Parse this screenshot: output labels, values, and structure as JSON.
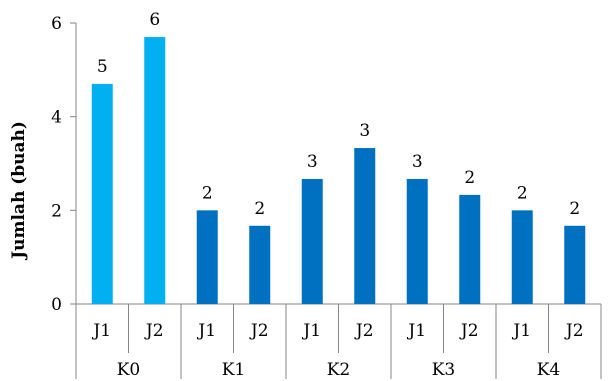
{
  "chart_data": {
    "type": "bar",
    "groups": [
      {
        "label": "K0",
        "bars": [
          {
            "label": "J1",
            "value": 4.7,
            "data_label": "5"
          },
          {
            "label": "J2",
            "value": 5.7,
            "data_label": "6"
          }
        ]
      },
      {
        "label": "K1",
        "bars": [
          {
            "label": "J1",
            "value": 2.0,
            "data_label": "2"
          },
          {
            "label": "J2",
            "value": 1.67,
            "data_label": "2"
          }
        ]
      },
      {
        "label": "K2",
        "bars": [
          {
            "label": "J1",
            "value": 2.67,
            "data_label": "3"
          },
          {
            "label": "J2",
            "value": 3.33,
            "data_label": "3"
          }
        ]
      },
      {
        "label": "K3",
        "bars": [
          {
            "label": "J1",
            "value": 2.67,
            "data_label": "3"
          },
          {
            "label": "J2",
            "value": 2.33,
            "data_label": "2"
          }
        ]
      },
      {
        "label": "K4",
        "bars": [
          {
            "label": "J1",
            "value": 2.0,
            "data_label": "2"
          },
          {
            "label": "J2",
            "value": 1.67,
            "data_label": "2"
          }
        ]
      }
    ],
    "title": "",
    "xlabel": "",
    "ylabel": "Jumlah (buah)",
    "ylim": [
      0,
      6
    ],
    "yticks": [
      0,
      2,
      4,
      6
    ],
    "grid": false,
    "legend": "none",
    "colors": {
      "K0": "#00b0f0",
      "default": "#0070c0"
    }
  }
}
